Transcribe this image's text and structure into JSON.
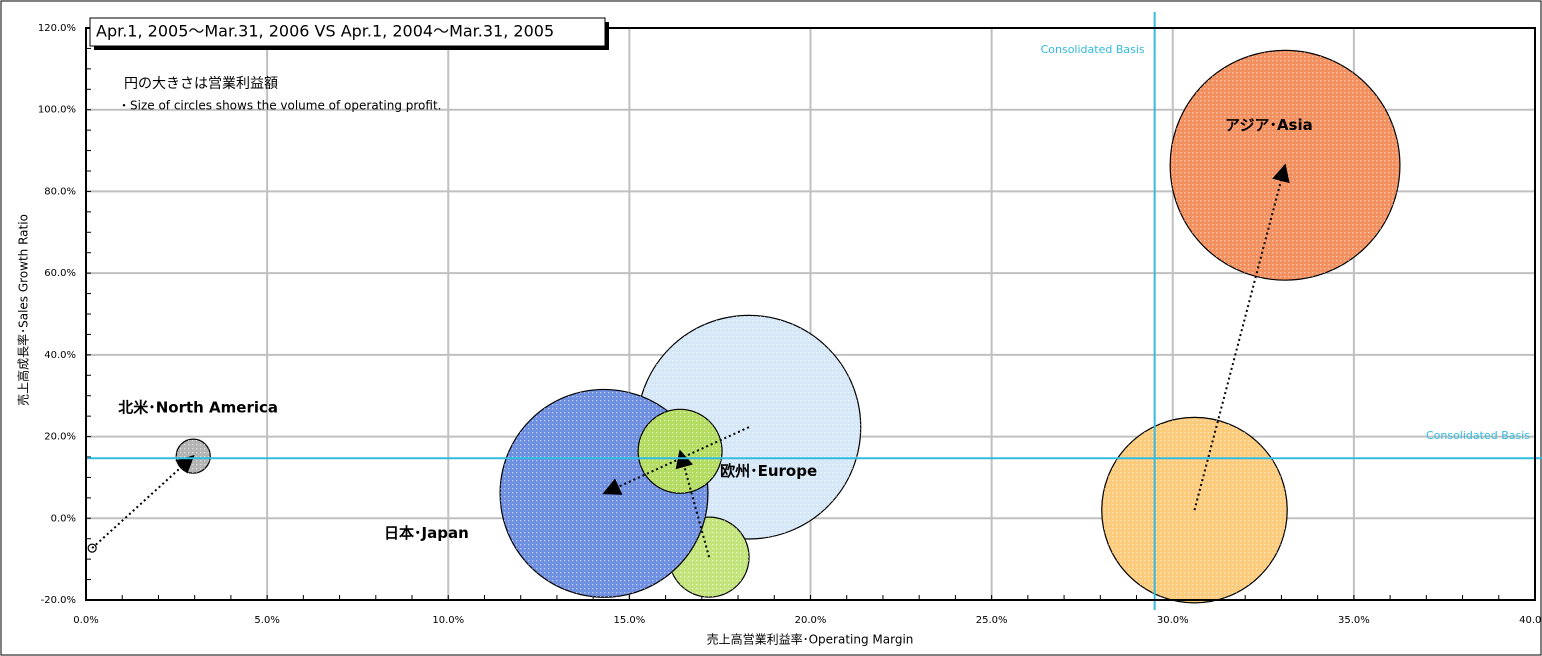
{
  "chart_data": {
    "type": "bubble",
    "title": "Apr.1, 2005〜Mar.31, 2006 VS Apr.1, 2004〜Mar.31, 2005",
    "notes": [
      "円の大きさは営業利益額",
      "・Size of circles shows the volume of operating profit."
    ],
    "x_label": "売上高営業利益率･Operating Margin",
    "y_label": "売上高成長率･Sales Growth Ratio",
    "xlim": [
      0,
      40
    ],
    "ylim": [
      -20,
      120
    ],
    "xticks": [
      {
        "value": 0,
        "label": "0.0%"
      },
      {
        "value": 5,
        "label": "5.0%"
      },
      {
        "value": 10,
        "label": "10.0%"
      },
      {
        "value": 15,
        "label": "15.0%"
      },
      {
        "value": 20,
        "label": "20.0%"
      },
      {
        "value": 25,
        "label": "25.0%"
      },
      {
        "value": 30,
        "label": "30.0%"
      },
      {
        "value": 35,
        "label": "35.0%"
      },
      {
        "value": 40,
        "label": "40.0%"
      }
    ],
    "yticks": [
      {
        "value": -20,
        "label": "-20.0%"
      },
      {
        "value": 0,
        "label": "0.0%"
      },
      {
        "value": 20,
        "label": "20.0%"
      },
      {
        "value": 40,
        "label": "40.0%"
      },
      {
        "value": 60,
        "label": "60.0%"
      },
      {
        "value": 80,
        "label": "80.0%"
      },
      {
        "value": 100,
        "label": "100.0%"
      },
      {
        "value": 120,
        "label": "120.0%"
      }
    ],
    "grid": true,
    "reference_lines": [
      {
        "axis": "x",
        "value": 29.5,
        "label": "Consolidated  Basis",
        "color": "#33bbe0"
      },
      {
        "axis": "y",
        "value": 14.7,
        "label": "Consolidated  Basis",
        "color": "#33bbe0"
      }
    ],
    "series": [
      {
        "name": "日本･Japan",
        "x": [
          18.3,
          14.3
        ],
        "values": [
          22.3,
          6.1
        ],
        "sizes": [
          125,
          108
        ],
        "colors": [
          "#d6e8f8",
          "#6f8fe0"
        ]
      },
      {
        "name": "欧州･Europe",
        "x": [
          17.2,
          16.4
        ],
        "values": [
          -9.5,
          16.4
        ],
        "sizes": [
          16,
          17.6
        ],
        "colors": [
          "#c2e47a",
          "#b4dc62"
        ]
      },
      {
        "name": "アジア･Asia",
        "x": [
          30.6,
          33.1
        ],
        "values": [
          2,
          86.4
        ],
        "sizes": [
          86,
          132
        ],
        "colors": [
          "#fccb7c",
          "#f39060"
        ]
      },
      {
        "name": "北米･North America",
        "x": [
          0.17,
          2.96
        ],
        "values": [
          -7.3,
          15.2
        ],
        "sizes": [
          0.16,
          2.9
        ],
        "colors": [
          "#ffffff",
          "#b4b4b4"
        ]
      }
    ]
  }
}
